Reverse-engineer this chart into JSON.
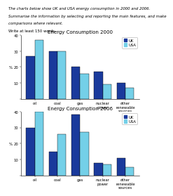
{
  "chart1": {
    "title": "Energy Consumption 2000",
    "categories": [
      "oil",
      "coal",
      "gas",
      "nuclear\npower",
      "other\nrenewable\nsources"
    ],
    "uk": [
      27,
      30,
      20,
      17,
      10
    ],
    "usa": [
      37,
      30,
      16,
      9,
      7
    ]
  },
  "chart2": {
    "title": "Energy Consumption 2006",
    "categories": [
      "oil",
      "coal",
      "gas",
      "nuclear\npower",
      "other\nrenewable\nsources"
    ],
    "uk": [
      30,
      15,
      38,
      8,
      11
    ],
    "usa": [
      40,
      26,
      27,
      7,
      5
    ]
  },
  "uk_color": "#1a3a9c",
  "usa_color": "#74d0e8",
  "ylabel": "%",
  "ylim": [
    0,
    40
  ],
  "yticks": [
    0,
    10,
    20,
    30,
    40
  ],
  "header_line1": "The charts below show UK and USA energy consumption in 2000 and 2006.",
  "header_line2": "Summarise the information by selecting and reporting the main features, and make",
  "header_line3": "comparisons where relevant.",
  "header_line4": "Write at least 150 words.",
  "bar_width": 0.38,
  "title_fontsize": 5.0,
  "tick_fontsize": 3.8,
  "label_fontsize": 4.0,
  "legend_fontsize": 3.8,
  "header_fontsize": 3.9
}
